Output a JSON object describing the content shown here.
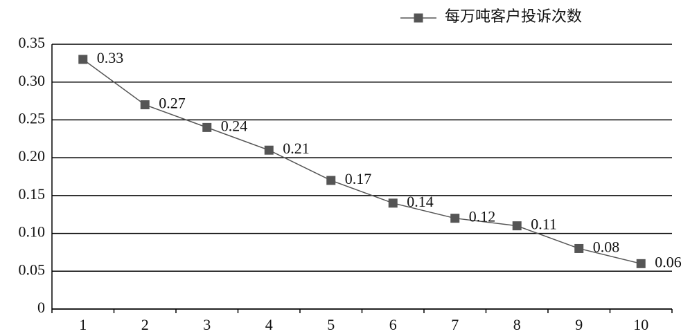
{
  "chart_data": {
    "type": "line",
    "categories": [
      "1",
      "2",
      "3",
      "4",
      "5",
      "6",
      "7",
      "8",
      "9",
      "10"
    ],
    "series": [
      {
        "name": "每万吨客户投诉次数",
        "color": "#555555",
        "values": [
          0.33,
          0.27,
          0.24,
          0.21,
          0.17,
          0.14,
          0.12,
          0.11,
          0.08,
          0.06
        ]
      }
    ],
    "ylim": [
      0,
      0.35
    ],
    "yticks": [
      0,
      0.05,
      {
        "value": 0.1,
        "label": "0.10"
      },
      0.15,
      {
        "value": 0.2,
        "label": "0.20"
      },
      0.25,
      {
        "value": 0.3,
        "label": "0.30"
      },
      0.35
    ],
    "grid": true,
    "legend": "top-right"
  }
}
